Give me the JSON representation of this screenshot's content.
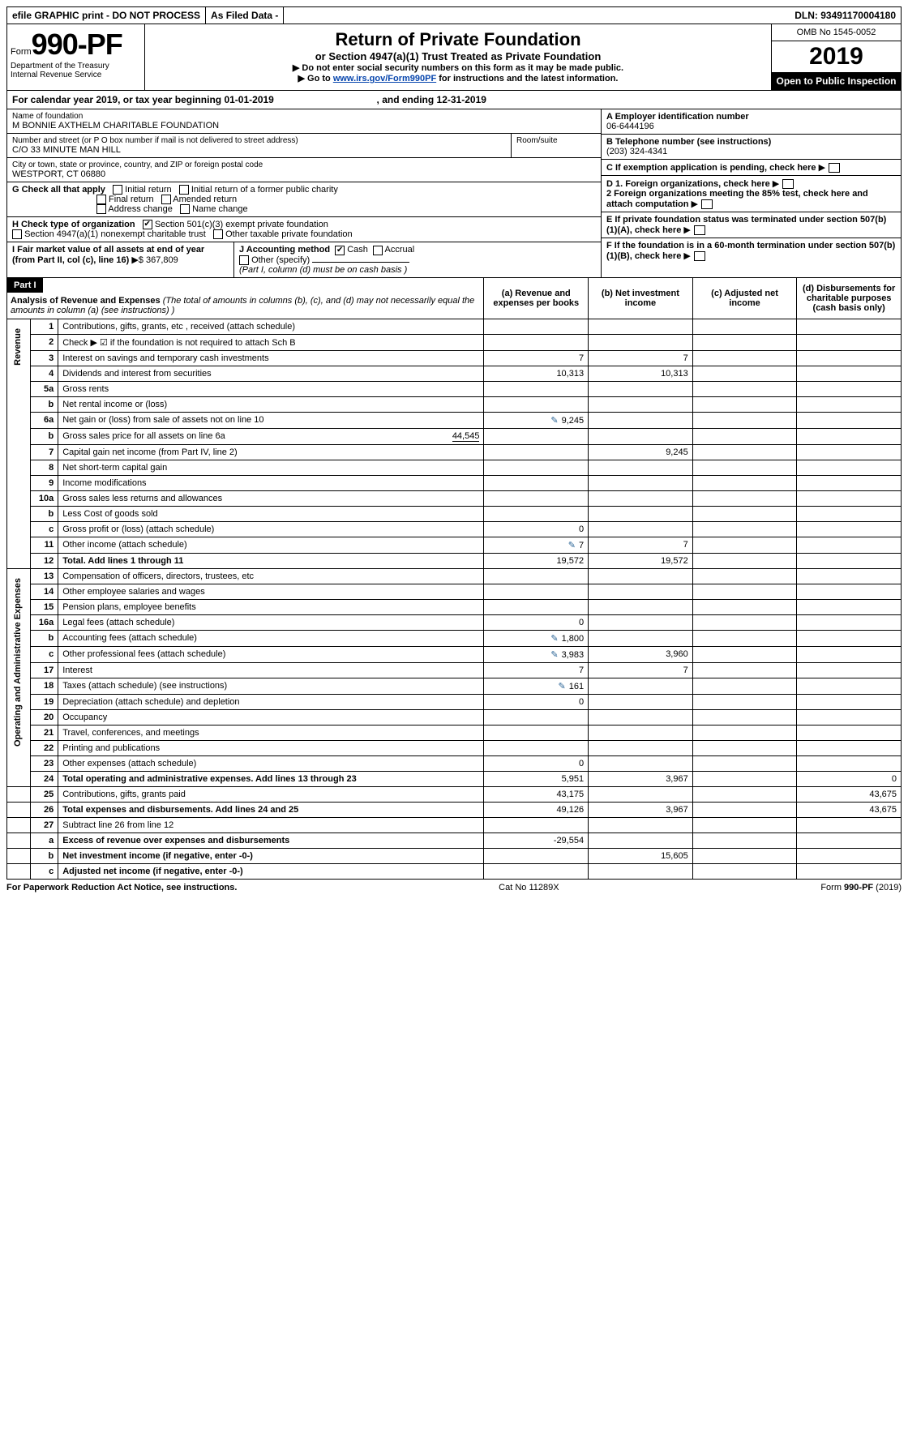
{
  "topbar": {
    "efile": "efile GRAPHIC print - DO NOT PROCESS",
    "asfiled": "As Filed Data -",
    "dln_label": "DLN:",
    "dln": "93491170004180"
  },
  "header": {
    "form_label": "Form",
    "form_no": "990-PF",
    "dept1": "Department of the Treasury",
    "dept2": "Internal Revenue Service",
    "title": "Return of Private Foundation",
    "subtitle": "or Section 4947(a)(1) Trust Treated as Private Foundation",
    "note1": "▶ Do not enter social security numbers on this form as it may be made public.",
    "note2_pre": "▶ Go to ",
    "note2_link": "www.irs.gov/Form990PF",
    "note2_post": " for instructions and the latest information.",
    "omb": "OMB No 1545-0052",
    "year": "2019",
    "open": "Open to Public Inspection"
  },
  "cal": {
    "text_a": "For calendar year 2019, or tax year beginning ",
    "begin": "01-01-2019",
    "text_b": ", and ending ",
    "end": "12-31-2019"
  },
  "info": {
    "name_label": "Name of foundation",
    "name": "M BONNIE AXTHELM CHARITABLE FOUNDATION",
    "addr_label": "Number and street (or P O  box number if mail is not delivered to street address)",
    "addr": "C/O 33 MINUTE MAN HILL",
    "room_label": "Room/suite",
    "city_label": "City or town, state or province, country, and ZIP or foreign postal code",
    "city": "WESTPORT, CT  06880",
    "a_label": "A Employer identification number",
    "a_val": "06-6444196",
    "b_label": "B Telephone number (see instructions)",
    "b_val": "(203) 324-4341",
    "c_label": "C If exemption application is pending, check here",
    "d1": "D 1. Foreign organizations, check here",
    "d2": "2 Foreign organizations meeting the 85% test, check here and attach computation",
    "e": "E  If private foundation status was terminated under section 507(b)(1)(A), check here",
    "f": "F  If the foundation is in a 60-month termination under section 507(b)(1)(B), check here"
  },
  "g": {
    "label": "G Check all that apply",
    "opts": [
      "Initial return",
      "Initial return of a former public charity",
      "Final return",
      "Amended return",
      "Address change",
      "Name change"
    ]
  },
  "h": {
    "label": "H Check type of organization",
    "opt1": "Section 501(c)(3) exempt private foundation",
    "opt2": "Section 4947(a)(1) nonexempt charitable trust",
    "opt3": "Other taxable private foundation"
  },
  "i": {
    "label": "I Fair market value of all assets at end of year (from Part II, col  (c), line 16)",
    "val": "▶$  367,809"
  },
  "j": {
    "label": "J Accounting method",
    "cash": "Cash",
    "accrual": "Accrual",
    "other": "Other (specify)",
    "note": "(Part I, column (d) must be on cash basis )"
  },
  "part1": {
    "label": "Part I",
    "title": "Analysis of Revenue and Expenses",
    "note": "(The total of amounts in columns (b), (c), and (d) may not necessarily equal the amounts in column (a) (see instructions) )",
    "col_a": "(a) Revenue and expenses per books",
    "col_b": "(b) Net investment income",
    "col_c": "(c) Adjusted net income",
    "col_d": "(d) Disbursements for charitable purposes (cash basis only)"
  },
  "side": {
    "rev": "Revenue",
    "exp": "Operating and Administrative Expenses"
  },
  "rows": [
    {
      "n": "1",
      "d": "Contributions, gifts, grants, etc , received (attach schedule)"
    },
    {
      "n": "2",
      "d": "Check ▶ ☑ if the foundation is not required to attach Sch B",
      "d2": true
    },
    {
      "n": "3",
      "d": "Interest on savings and temporary cash investments",
      "a": "7",
      "b": "7"
    },
    {
      "n": "4",
      "d": "Dividends and interest from securities",
      "a": "10,313",
      "b": "10,313"
    },
    {
      "n": "5a",
      "d": "Gross rents"
    },
    {
      "n": "b",
      "d": "Net rental income or (loss)"
    },
    {
      "n": "6a",
      "d": "Net gain or (loss) from sale of assets not on line 10",
      "a": "9,245",
      "pencil": true
    },
    {
      "n": "b",
      "d": "Gross sales price for all assets on line 6a",
      "inline": "44,545"
    },
    {
      "n": "7",
      "d": "Capital gain net income (from Part IV, line 2)",
      "b": "9,245"
    },
    {
      "n": "8",
      "d": "Net short-term capital gain"
    },
    {
      "n": "9",
      "d": "Income modifications"
    },
    {
      "n": "10a",
      "d": "Gross sales less returns and allowances"
    },
    {
      "n": "b",
      "d": "Less  Cost of goods sold"
    },
    {
      "n": "c",
      "d": "Gross profit or (loss) (attach schedule)",
      "a": "0"
    },
    {
      "n": "11",
      "d": "Other income (attach schedule)",
      "a": "7",
      "b": "7",
      "pencil": true
    },
    {
      "n": "12",
      "d": "Total. Add lines 1 through 11",
      "a": "19,572",
      "b": "19,572",
      "bold": true
    },
    {
      "n": "13",
      "d": "Compensation of officers, directors, trustees, etc"
    },
    {
      "n": "14",
      "d": "Other employee salaries and wages"
    },
    {
      "n": "15",
      "d": "Pension plans, employee benefits"
    },
    {
      "n": "16a",
      "d": "Legal fees (attach schedule)",
      "a": "0"
    },
    {
      "n": "b",
      "d": "Accounting fees (attach schedule)",
      "a": "1,800",
      "pencil": true
    },
    {
      "n": "c",
      "d": "Other professional fees (attach schedule)",
      "a": "3,983",
      "b": "3,960",
      "pencil": true
    },
    {
      "n": "17",
      "d": "Interest",
      "a": "7",
      "b": "7"
    },
    {
      "n": "18",
      "d": "Taxes (attach schedule) (see instructions)",
      "a": "161",
      "pencil": true
    },
    {
      "n": "19",
      "d": "Depreciation (attach schedule) and depletion",
      "a": "0"
    },
    {
      "n": "20",
      "d": "Occupancy"
    },
    {
      "n": "21",
      "d": "Travel, conferences, and meetings"
    },
    {
      "n": "22",
      "d": "Printing and publications"
    },
    {
      "n": "23",
      "d": "Other expenses (attach schedule)",
      "a": "0"
    },
    {
      "n": "24",
      "d": "Total operating and administrative expenses. Add lines 13 through 23",
      "a": "5,951",
      "b": "3,967",
      "dcol": "0",
      "bold": true
    },
    {
      "n": "25",
      "d": "Contributions, gifts, grants paid",
      "a": "43,175",
      "dcol": "43,675"
    },
    {
      "n": "26",
      "d": "Total expenses and disbursements. Add lines 24 and 25",
      "a": "49,126",
      "b": "3,967",
      "dcol": "43,675",
      "bold": true
    },
    {
      "n": "27",
      "d": "Subtract line 26 from line 12"
    },
    {
      "n": "a",
      "d": "Excess of revenue over expenses and disbursements",
      "a": "-29,554",
      "bold": true
    },
    {
      "n": "b",
      "d": "Net investment income (if negative, enter -0-)",
      "b": "15,605",
      "bold": true
    },
    {
      "n": "c",
      "d": "Adjusted net income (if negative, enter -0-)",
      "bold": true
    }
  ],
  "footer": {
    "left": "For Paperwork Reduction Act Notice, see instructions.",
    "mid": "Cat No  11289X",
    "right": "Form 990-PF (2019)"
  }
}
